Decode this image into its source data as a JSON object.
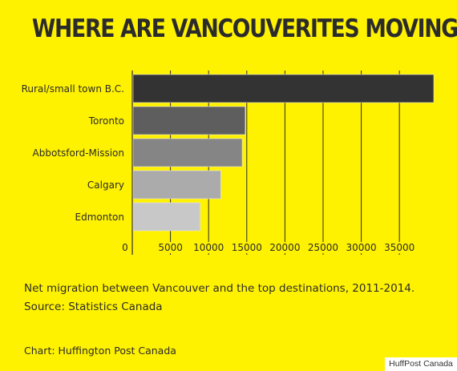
{
  "title": "WHERE ARE VANCOUVERITES MOVING?",
  "notes": {
    "description": "Net migration between Vancouver and the top destinations, 2011-2014.",
    "source": "Source: Statistics Canada"
  },
  "credit": "Chart: Huffington Post Canada",
  "watermark": "HuffPost Canada",
  "colors": {
    "background": "#fff200",
    "text": "#2b2b2b",
    "grid": "#2b2b2b",
    "bars": [
      "#333333",
      "#5e5e5e",
      "#858585",
      "#ababab",
      "#c8c8c8"
    ]
  },
  "chart_data": {
    "type": "bar",
    "orientation": "horizontal",
    "categories": [
      "Rural/small town B.C.",
      "Toronto",
      "Abbotsford-Mission",
      "Calgary",
      "Edmonton"
    ],
    "values": [
      39500,
      14800,
      14400,
      11600,
      8900
    ],
    "xticks": [
      0,
      5000,
      10000,
      15000,
      20000,
      25000,
      30000,
      35000
    ],
    "xlim": [
      0,
      39500
    ],
    "grid": true,
    "legend": "none"
  }
}
